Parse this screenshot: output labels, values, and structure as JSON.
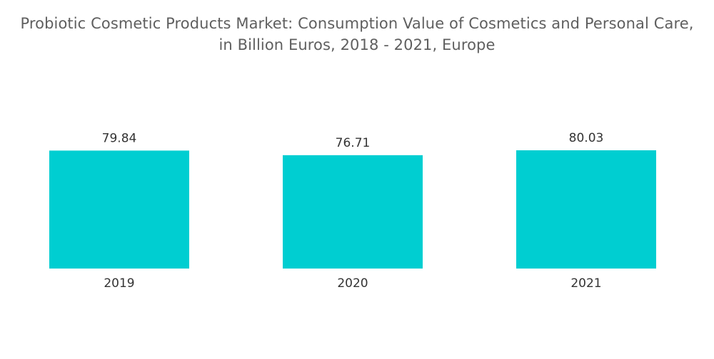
{
  "chart_data": {
    "type": "bar",
    "title": "Probiotic Cosmetic Products Market: Consumption Value of Cosmetics and Personal Care,",
    "subtitle": "in Billion Euros, 2018 - 2021, Europe",
    "categories": [
      "2019",
      "2020",
      "2021"
    ],
    "values": [
      79.84,
      76.71,
      80.03
    ],
    "value_labels": [
      "79.84",
      "76.71",
      "80.03"
    ],
    "xlabel": "",
    "ylabel": "",
    "ylim": [
      0,
      80.03
    ],
    "grid": false,
    "legend": "none",
    "bar_color": "#00ced1"
  }
}
